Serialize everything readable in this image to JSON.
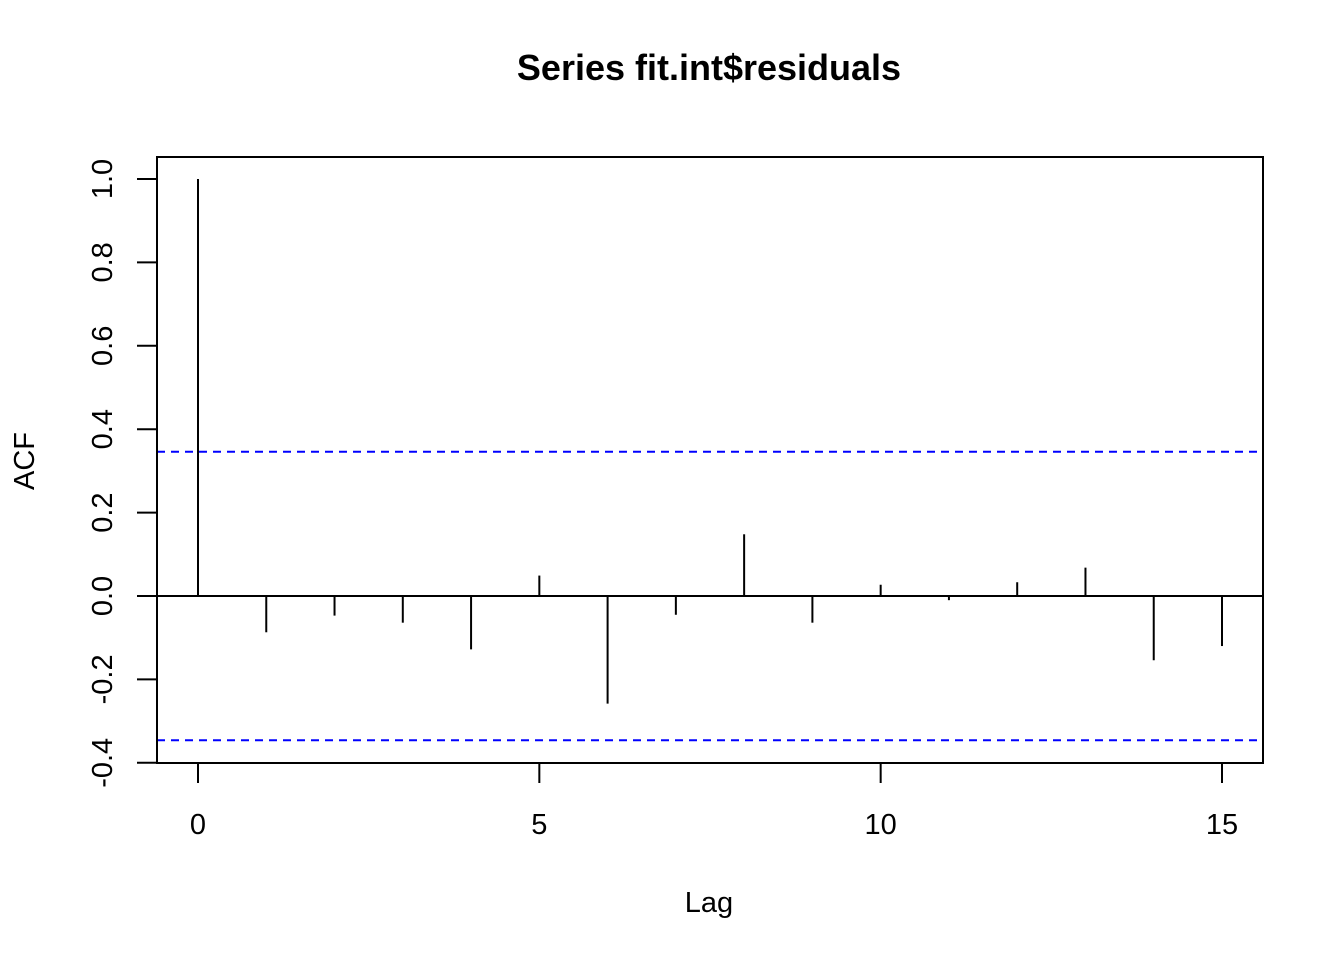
{
  "chart_data": {
    "type": "bar",
    "title": "Series  fit.int$residuals",
    "xlabel": "Lag",
    "ylabel": "ACF",
    "xlim": [
      -0.6,
      15.6
    ],
    "ylim": [
      -0.4,
      1.05
    ],
    "x_ticks": [
      0,
      5,
      10,
      15
    ],
    "y_ticks": [
      -0.4,
      -0.2,
      0.0,
      0.2,
      0.4,
      0.6,
      0.8,
      1.0
    ],
    "x_tick_labels": [
      "0",
      "5",
      "10",
      "15"
    ],
    "y_tick_labels": [
      "-0.4",
      "-0.2",
      "0.0",
      "0.2",
      "0.4",
      "0.6",
      "0.8",
      "1.0"
    ],
    "grid": false,
    "lags": [
      0,
      1,
      2,
      3,
      4,
      5,
      6,
      7,
      8,
      9,
      10,
      11,
      12,
      13,
      14,
      15
    ],
    "acf": [
      1.0,
      -0.087,
      -0.047,
      -0.064,
      -0.128,
      0.049,
      -0.258,
      -0.045,
      0.148,
      -0.064,
      0.027,
      -0.01,
      0.033,
      0.068,
      -0.154,
      -0.12
    ],
    "confidence_bounds": [
      0.346,
      -0.346
    ],
    "colors": {
      "bars": "#000000",
      "confidence": "#0000ff",
      "zero_line": "#000000",
      "frame": "#000000"
    }
  }
}
